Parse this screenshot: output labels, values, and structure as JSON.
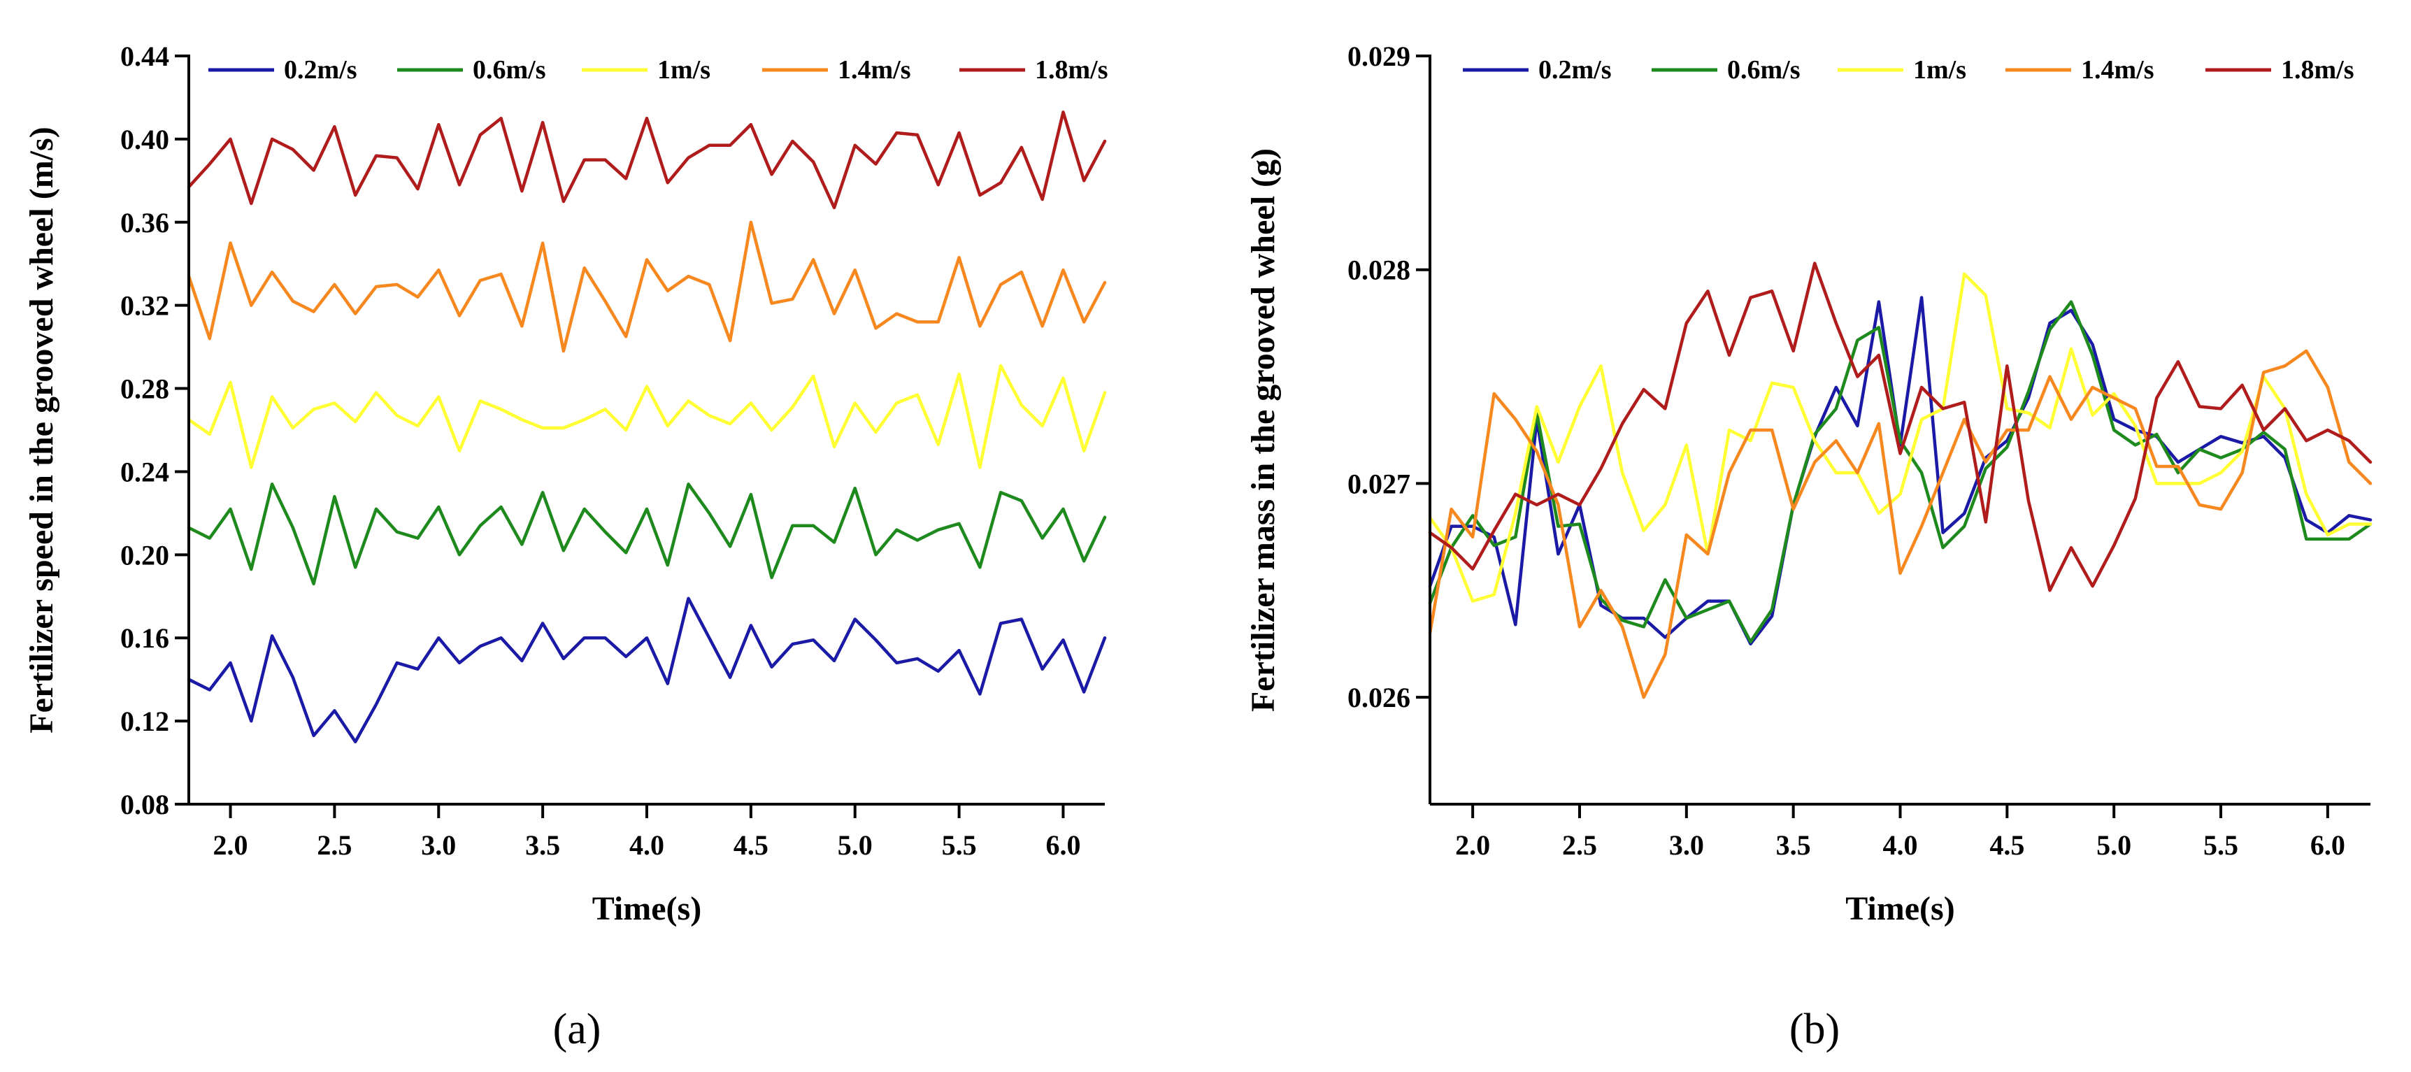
{
  "chart_data": [
    {
      "id": "a",
      "type": "line",
      "panel_label": "(a)",
      "xlabel": "Time(s)",
      "ylabel": "Fertilizer speed in the grooved wheel (m/s)",
      "xlim": [
        1.8,
        6.2
      ],
      "ylim": [
        0.08,
        0.44
      ],
      "xticks": [
        2.0,
        2.5,
        3.0,
        3.5,
        4.0,
        4.5,
        5.0,
        5.5,
        6.0
      ],
      "xtick_labels": [
        "2.0",
        "2.5",
        "3.0",
        "3.5",
        "4.0",
        "4.5",
        "5.0",
        "5.5",
        "6.0"
      ],
      "yticks": [
        0.08,
        0.12,
        0.16,
        0.2,
        0.24,
        0.28,
        0.32,
        0.36,
        0.4,
        0.44
      ],
      "ytick_labels": [
        "0.08",
        "0.12",
        "0.16",
        "0.20",
        "0.24",
        "0.28",
        "0.32",
        "0.36",
        "0.40",
        "0.44"
      ],
      "legend": "top",
      "x": [
        1.8,
        1.9,
        2.0,
        2.1,
        2.2,
        2.3,
        2.4,
        2.5,
        2.6,
        2.7,
        2.8,
        2.9,
        3.0,
        3.1,
        3.2,
        3.3,
        3.4,
        3.5,
        3.6,
        3.7,
        3.8,
        3.9,
        4.0,
        4.1,
        4.2,
        4.3,
        4.4,
        4.5,
        4.6,
        4.7,
        4.8,
        4.9,
        5.0,
        5.1,
        5.2,
        5.3,
        5.4,
        5.5,
        5.6,
        5.7,
        5.8,
        5.9,
        6.0,
        6.1,
        6.2
      ],
      "series": [
        {
          "name": "0.2m/s",
          "color": "#1a1aa6",
          "values": [
            0.14,
            0.135,
            0.148,
            0.12,
            0.161,
            0.141,
            0.113,
            0.125,
            0.11,
            0.128,
            0.148,
            0.145,
            0.16,
            0.148,
            0.156,
            0.16,
            0.149,
            0.167,
            0.15,
            0.16,
            0.16,
            0.151,
            0.16,
            0.138,
            0.179,
            0.16,
            0.141,
            0.166,
            0.146,
            0.157,
            0.159,
            0.149,
            0.169,
            0.159,
            0.148,
            0.15,
            0.144,
            0.154,
            0.133,
            0.167,
            0.169,
            0.145,
            0.159,
            0.134,
            0.16
          ]
        },
        {
          "name": "0.6m/s",
          "color": "#1e8a1e",
          "values": [
            0.213,
            0.208,
            0.222,
            0.193,
            0.234,
            0.213,
            0.186,
            0.228,
            0.194,
            0.222,
            0.211,
            0.208,
            0.223,
            0.2,
            0.214,
            0.223,
            0.205,
            0.23,
            0.202,
            0.222,
            0.211,
            0.201,
            0.222,
            0.195,
            0.234,
            0.22,
            0.204,
            0.229,
            0.189,
            0.214,
            0.214,
            0.206,
            0.232,
            0.2,
            0.212,
            0.207,
            0.212,
            0.215,
            0.194,
            0.23,
            0.226,
            0.208,
            0.222,
            0.197,
            0.218
          ]
        },
        {
          "name": "1m/s",
          "color": "#ffff33",
          "values": [
            0.265,
            0.258,
            0.283,
            0.242,
            0.276,
            0.261,
            0.27,
            0.273,
            0.264,
            0.278,
            0.267,
            0.262,
            0.276,
            0.25,
            0.274,
            0.27,
            0.265,
            0.261,
            0.261,
            0.265,
            0.27,
            0.26,
            0.281,
            0.262,
            0.274,
            0.267,
            0.263,
            0.273,
            0.26,
            0.271,
            0.286,
            0.252,
            0.273,
            0.259,
            0.273,
            0.277,
            0.253,
            0.287,
            0.242,
            0.291,
            0.272,
            0.262,
            0.285,
            0.25,
            0.278
          ]
        },
        {
          "name": "1.4m/s",
          "color": "#f7881f",
          "values": [
            0.334,
            0.304,
            0.35,
            0.32,
            0.336,
            0.322,
            0.317,
            0.33,
            0.316,
            0.329,
            0.33,
            0.324,
            0.337,
            0.315,
            0.332,
            0.335,
            0.31,
            0.35,
            0.298,
            0.338,
            0.322,
            0.305,
            0.342,
            0.327,
            0.334,
            0.33,
            0.303,
            0.36,
            0.321,
            0.323,
            0.342,
            0.316,
            0.337,
            0.309,
            0.316,
            0.312,
            0.312,
            0.343,
            0.31,
            0.33,
            0.336,
            0.31,
            0.337,
            0.312,
            0.331
          ]
        },
        {
          "name": "1.8m/s",
          "color": "#b01c1c",
          "values": [
            0.377,
            0.388,
            0.4,
            0.369,
            0.4,
            0.395,
            0.385,
            0.406,
            0.373,
            0.392,
            0.391,
            0.376,
            0.407,
            0.378,
            0.402,
            0.41,
            0.375,
            0.408,
            0.37,
            0.39,
            0.39,
            0.381,
            0.41,
            0.379,
            0.391,
            0.397,
            0.397,
            0.407,
            0.383,
            0.399,
            0.389,
            0.367,
            0.397,
            0.388,
            0.403,
            0.402,
            0.378,
            0.403,
            0.373,
            0.379,
            0.396,
            0.371,
            0.413,
            0.38,
            0.399
          ]
        }
      ]
    },
    {
      "id": "b",
      "type": "line",
      "panel_label": "(b)",
      "xlabel": "Time(s)",
      "ylabel": "Fertilizer mass in the grooved wheel (g)",
      "xlim": [
        1.8,
        6.2
      ],
      "ylim": [
        0.0255,
        0.029
      ],
      "xticks": [
        2.0,
        2.5,
        3.0,
        3.5,
        4.0,
        4.5,
        5.0,
        5.5,
        6.0
      ],
      "xtick_labels": [
        "2.0",
        "2.5",
        "3.0",
        "3.5",
        "4.0",
        "4.5",
        "5.0",
        "5.5",
        "6.0"
      ],
      "yticks": [
        0.026,
        0.027,
        0.028,
        0.029
      ],
      "ytick_labels": [
        "0.026",
        "0.027",
        "0.028",
        "0.029"
      ],
      "legend": "top",
      "x": [
        1.8,
        1.9,
        2.0,
        2.1,
        2.2,
        2.3,
        2.4,
        2.5,
        2.6,
        2.7,
        2.8,
        2.9,
        3.0,
        3.1,
        3.2,
        3.3,
        3.4,
        3.5,
        3.6,
        3.7,
        3.8,
        3.9,
        4.0,
        4.1,
        4.2,
        4.3,
        4.4,
        4.5,
        4.6,
        4.7,
        4.8,
        4.9,
        5.0,
        5.1,
        5.2,
        5.3,
        5.4,
        5.5,
        5.6,
        5.7,
        5.8,
        5.9,
        6.0,
        6.1,
        6.2
      ],
      "series": [
        {
          "name": "0.2m/s",
          "color": "#1a1aa6",
          "values": [
            0.02652,
            0.0268,
            0.0268,
            0.02675,
            0.02634,
            0.0273,
            0.02667,
            0.0269,
            0.02643,
            0.02637,
            0.02637,
            0.02628,
            0.02637,
            0.02645,
            0.02645,
            0.02625,
            0.02638,
            0.0269,
            0.02722,
            0.02745,
            0.02727,
            0.02785,
            0.02718,
            0.02787,
            0.02677,
            0.02686,
            0.02712,
            0.0272,
            0.0274,
            0.02775,
            0.02781,
            0.02765,
            0.0273,
            0.02725,
            0.02722,
            0.0271,
            0.02716,
            0.02722,
            0.02719,
            0.02722,
            0.02712,
            0.02683,
            0.02677,
            0.02685,
            0.02683
          ]
        },
        {
          "name": "0.6m/s",
          "color": "#1e8a1e",
          "values": [
            0.02644,
            0.0267,
            0.02685,
            0.02671,
            0.02675,
            0.02733,
            0.0268,
            0.02681,
            0.02646,
            0.02636,
            0.02633,
            0.02655,
            0.02637,
            0.02641,
            0.02645,
            0.02626,
            0.02641,
            0.0269,
            0.02723,
            0.02735,
            0.02767,
            0.02773,
            0.0272,
            0.02705,
            0.0267,
            0.0268,
            0.02707,
            0.02717,
            0.02743,
            0.02772,
            0.02785,
            0.0276,
            0.02725,
            0.02718,
            0.02723,
            0.02705,
            0.02716,
            0.02712,
            0.02716,
            0.02724,
            0.02716,
            0.02674,
            0.02674,
            0.02674,
            0.02681
          ]
        },
        {
          "name": "1m/s",
          "color": "#ffff33",
          "values": [
            0.02684,
            0.0267,
            0.02645,
            0.02648,
            0.02686,
            0.02736,
            0.0271,
            0.02736,
            0.02755,
            0.02705,
            0.02678,
            0.0269,
            0.02718,
            0.02667,
            0.02725,
            0.0272,
            0.02747,
            0.02745,
            0.0272,
            0.02705,
            0.02705,
            0.02686,
            0.02695,
            0.0273,
            0.02735,
            0.02798,
            0.02788,
            0.02735,
            0.02733,
            0.02726,
            0.02763,
            0.02732,
            0.02742,
            0.02727,
            0.027,
            0.027,
            0.027,
            0.02705,
            0.02715,
            0.0275,
            0.02735,
            0.02695,
            0.02676,
            0.02681,
            0.02681
          ]
        },
        {
          "name": "1.4m/s",
          "color": "#f7881f",
          "values": [
            0.0263,
            0.02688,
            0.02675,
            0.02742,
            0.0273,
            0.02715,
            0.0269,
            0.02633,
            0.0265,
            0.02633,
            0.026,
            0.0262,
            0.02676,
            0.02667,
            0.02705,
            0.02725,
            0.02725,
            0.02688,
            0.0271,
            0.0272,
            0.02705,
            0.02728,
            0.02658,
            0.0268,
            0.02705,
            0.0273,
            0.0271,
            0.02725,
            0.02725,
            0.0275,
            0.0273,
            0.02745,
            0.0274,
            0.02735,
            0.02708,
            0.02708,
            0.0269,
            0.02688,
            0.02705,
            0.02752,
            0.02755,
            0.02762,
            0.02745,
            0.0271,
            0.027
          ]
        },
        {
          "name": "1.8m/s",
          "color": "#b01c1c",
          "values": [
            0.02677,
            0.0267,
            0.0266,
            0.02678,
            0.02695,
            0.0269,
            0.02695,
            0.0269,
            0.02707,
            0.02728,
            0.02744,
            0.02735,
            0.02775,
            0.0279,
            0.0276,
            0.02787,
            0.0279,
            0.02762,
            0.02803,
            0.02775,
            0.0275,
            0.0276,
            0.02714,
            0.02745,
            0.02735,
            0.02738,
            0.02682,
            0.02755,
            0.02692,
            0.0265,
            0.0267,
            0.02652,
            0.02671,
            0.02693,
            0.0274,
            0.02757,
            0.02736,
            0.02735,
            0.02746,
            0.02725,
            0.02735,
            0.0272,
            0.02725,
            0.0272,
            0.0271
          ]
        }
      ]
    }
  ]
}
